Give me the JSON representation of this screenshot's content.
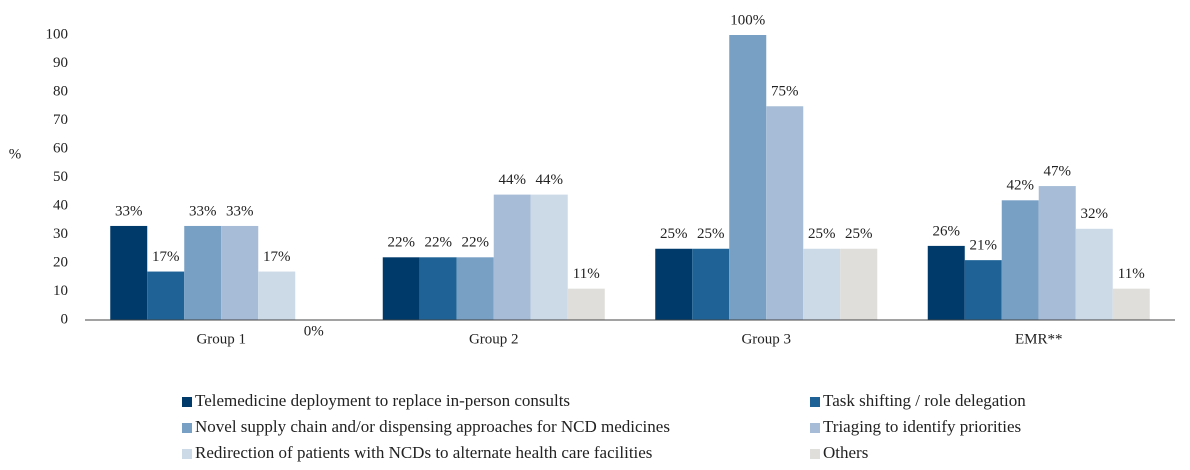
{
  "chart_data": {
    "type": "bar",
    "ylabel": "%",
    "categories": [
      "Group 1",
      "Group 2",
      "Group 3",
      "EMR**"
    ],
    "ylim": [
      0,
      100
    ],
    "yticks": [
      0,
      10,
      20,
      30,
      40,
      50,
      60,
      70,
      80,
      90,
      100
    ],
    "grid": false,
    "legend": "bottom",
    "series": [
      {
        "name": "Telemedicine deployment to replace in-person consults",
        "color": "#003a6b",
        "values": [
          33,
          22,
          25,
          26
        ],
        "value_labels": [
          "33%",
          "22%",
          "25%",
          "26%"
        ]
      },
      {
        "name": "Task shifting / role delegation",
        "color": "#1f6396",
        "values": [
          17,
          22,
          25,
          21
        ],
        "value_labels": [
          "17%",
          "22%",
          "25%",
          "21%"
        ]
      },
      {
        "name": "Novel supply chain and/or dispensing approaches for NCD medicines",
        "color": "#789fc4",
        "values": [
          33,
          22,
          100,
          42
        ],
        "value_labels": [
          "33%",
          "22%",
          "100%",
          "42%"
        ]
      },
      {
        "name": "Triaging to identify priorities",
        "color": "#a7bdd7",
        "values": [
          33,
          44,
          75,
          47
        ],
        "value_labels": [
          "33%",
          "44%",
          "75%",
          "47%"
        ]
      },
      {
        "name": "Redirection of patients with NCDs to alternate health care facilities",
        "color": "#ccdae8",
        "values": [
          17,
          44,
          25,
          32
        ],
        "value_labels": [
          "17%",
          "44%",
          "25%",
          "32%"
        ]
      },
      {
        "name": "Others",
        "color": "#e0deda",
        "values": [
          0,
          11,
          25,
          11
        ],
        "value_labels": [
          "0%",
          "11%",
          "25%",
          "11%"
        ]
      }
    ]
  }
}
